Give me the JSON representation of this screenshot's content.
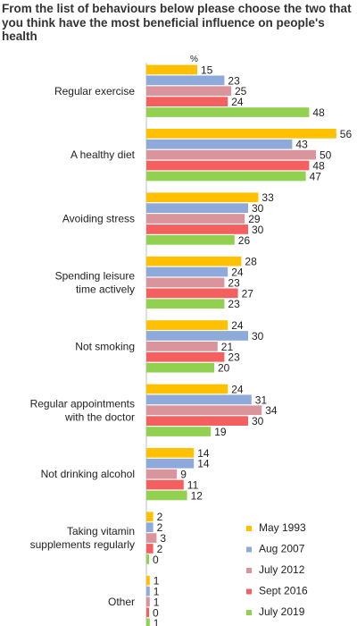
{
  "title": "From the list of behaviours below please choose the two that you think have the most beneficial influence on people's health",
  "chart_data": {
    "type": "bar",
    "orientation": "horizontal",
    "unit": "%",
    "categories": [
      "Regular exercise",
      "A healthy diet",
      "Avoiding stress",
      "Spending leisure time actively",
      "Not smoking",
      "Regular appointments with the doctor",
      "Not drinking alcohol",
      "Taking vitamin supplements regularly",
      "Other"
    ],
    "category_lines": [
      [
        "Regular exercise"
      ],
      [
        "A healthy diet"
      ],
      [
        "Avoiding stress"
      ],
      [
        "Spending leisure",
        "time actively"
      ],
      [
        "Not smoking"
      ],
      [
        "Regular appointments",
        "with the doctor"
      ],
      [
        "Not drinking alcohol"
      ],
      [
        "Taking vitamin",
        "supplements regularly"
      ],
      [
        "Other"
      ]
    ],
    "series": [
      {
        "name": "May 1993",
        "color": "#FFC000",
        "values": [
          15,
          56,
          33,
          28,
          24,
          24,
          14,
          2,
          1
        ]
      },
      {
        "name": "Aug 2007",
        "color": "#8EAADB",
        "values": [
          23,
          43,
          30,
          24,
          30,
          31,
          14,
          2,
          1
        ]
      },
      {
        "name": "July 2012",
        "color": "#D9959B",
        "values": [
          25,
          50,
          29,
          23,
          21,
          34,
          9,
          3,
          1
        ]
      },
      {
        "name": "Sept 2016",
        "color": "#F4605F",
        "values": [
          24,
          48,
          30,
          27,
          23,
          30,
          11,
          2,
          0
        ]
      },
      {
        "name": "July 2019",
        "color": "#92D050",
        "values": [
          48,
          47,
          26,
          23,
          20,
          19,
          12,
          0,
          1
        ]
      }
    ],
    "xlim": [
      0,
      56
    ],
    "legend_position": "bottom-right"
  }
}
